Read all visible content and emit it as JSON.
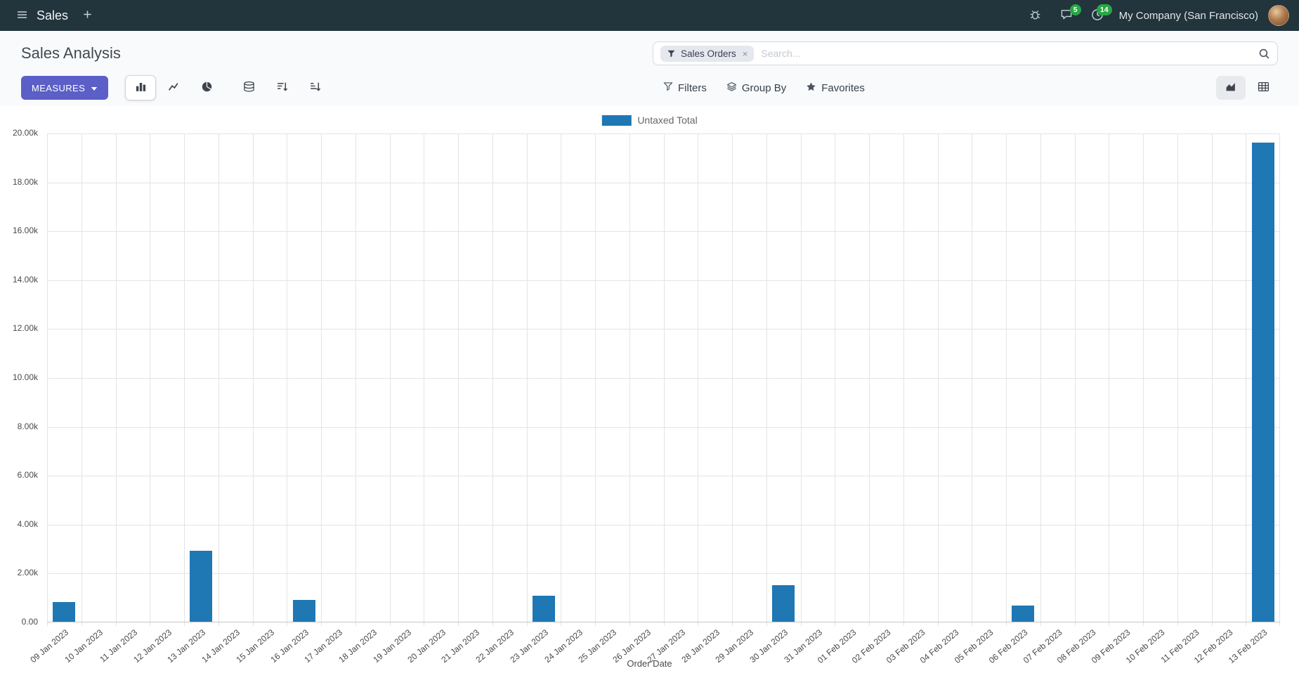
{
  "colors": {
    "navbar_bg": "#22343C",
    "accent_primary": "#5B5FC7",
    "bar_color": "#1F77B4",
    "badge_green": "#28A745",
    "panel_bg": "#F9FAFB",
    "facet_bg": "#E6E8F0"
  },
  "navbar": {
    "app_label": "Sales",
    "company": "My Company (San Francisco)",
    "messages_badge": "5",
    "activities_badge": "14"
  },
  "control_panel": {
    "title": "Sales Analysis",
    "measures_label": "MEASURES",
    "search": {
      "facet_label": "Sales Orders",
      "placeholder": "Search...",
      "remove_symbol": "×"
    },
    "menus": {
      "filters": "Filters",
      "group_by": "Group By",
      "favorites": "Favorites"
    }
  },
  "chart_data": {
    "type": "bar",
    "title": "",
    "xlabel": "Order Date",
    "ylabel": "",
    "ylim": [
      0,
      20000
    ],
    "y_ticks": [
      "0.00",
      "2.00k",
      "4.00k",
      "6.00k",
      "8.00k",
      "10.00k",
      "12.00k",
      "14.00k",
      "16.00k",
      "18.00k",
      "20.00k"
    ],
    "grid": true,
    "legend_position": "top",
    "categories": [
      "09 Jan 2023",
      "10 Jan 2023",
      "11 Jan 2023",
      "12 Jan 2023",
      "13 Jan 2023",
      "14 Jan 2023",
      "15 Jan 2023",
      "16 Jan 2023",
      "17 Jan 2023",
      "18 Jan 2023",
      "19 Jan 2023",
      "20 Jan 2023",
      "21 Jan 2023",
      "22 Jan 2023",
      "23 Jan 2023",
      "24 Jan 2023",
      "25 Jan 2023",
      "26 Jan 2023",
      "27 Jan 2023",
      "28 Jan 2023",
      "29 Jan 2023",
      "30 Jan 2023",
      "31 Jan 2023",
      "01 Feb 2023",
      "02 Feb 2023",
      "03 Feb 2023",
      "04 Feb 2023",
      "05 Feb 2023",
      "06 Feb 2023",
      "07 Feb 2023",
      "08 Feb 2023",
      "09 Feb 2023",
      "10 Feb 2023",
      "11 Feb 2023",
      "12 Feb 2023",
      "13 Feb 2023"
    ],
    "series": [
      {
        "name": "Untaxed Total",
        "color": "#1F77B4",
        "values": [
          800,
          0,
          0,
          0,
          2900,
          0,
          0,
          900,
          0,
          0,
          0,
          0,
          0,
          0,
          1050,
          0,
          0,
          0,
          0,
          0,
          0,
          1500,
          0,
          0,
          0,
          0,
          0,
          0,
          650,
          0,
          0,
          0,
          0,
          0,
          0,
          19600
        ]
      }
    ]
  }
}
